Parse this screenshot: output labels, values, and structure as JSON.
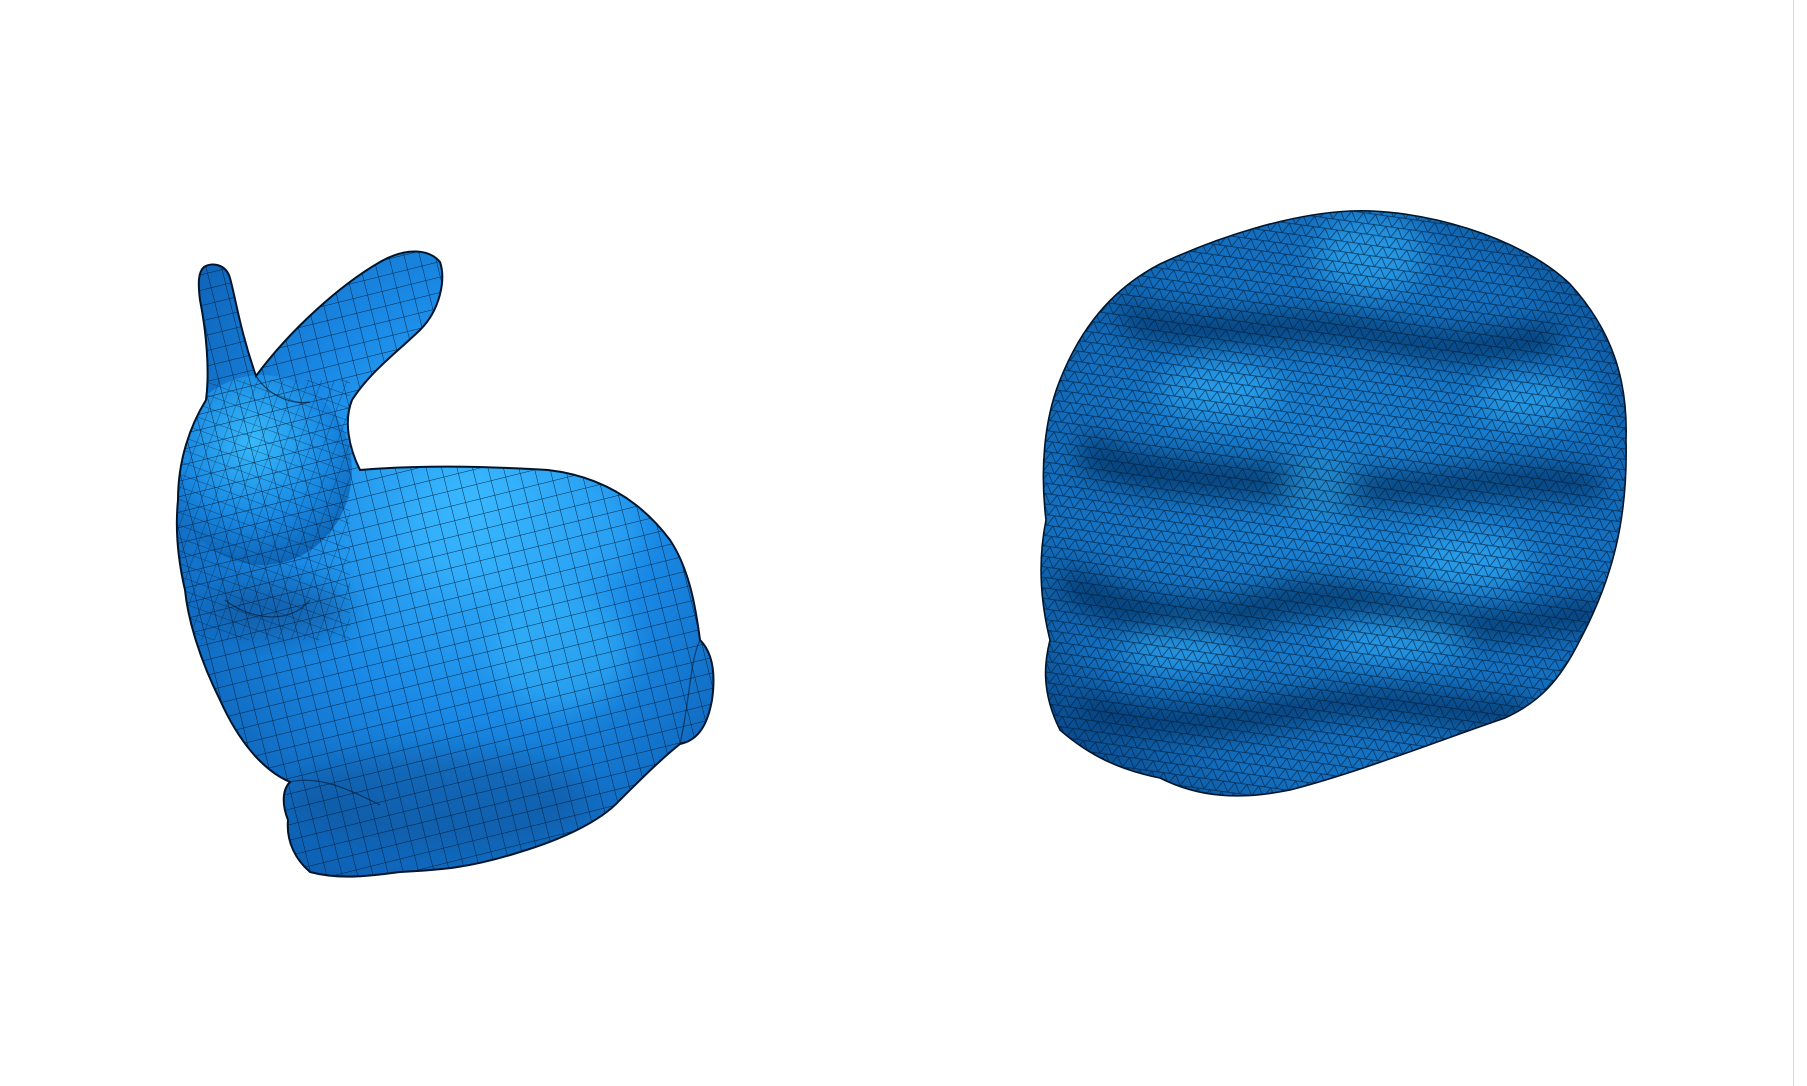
{
  "scene": {
    "background_color": "#ffffff",
    "panels": [
      {
        "name": "quad-mesh-bunny",
        "mesh_type": "quadrilateral",
        "base_color": "#1a86e0",
        "highlight_color": "#3ab8ff",
        "shadow_color": "#0a4f9a",
        "wire_color": "#000000"
      },
      {
        "name": "triangle-mesh-disc",
        "mesh_type": "triangular",
        "base_color": "#0f6fc4",
        "highlight_color": "#35b6ff",
        "shadow_color": "#062f62",
        "wire_color": "#000000"
      }
    ]
  }
}
